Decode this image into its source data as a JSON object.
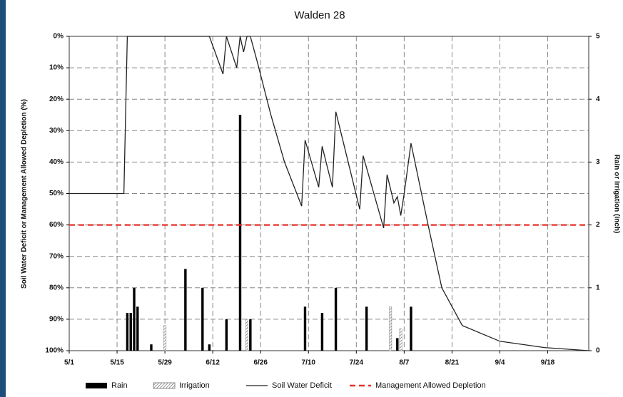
{
  "chart_data": {
    "type": "combo",
    "title": "Walden 28",
    "y_label": "Soil Water Deficit or Management Allowed Depletion (%)",
    "y2_label": "Rain or Irrigation (inch)",
    "xlim": [
      "5/1",
      "9/30"
    ],
    "xticks": [
      "5/1",
      "5/15",
      "5/29",
      "6/12",
      "6/26",
      "7/10",
      "7/24",
      "8/7",
      "8/21",
      "9/4",
      "9/18"
    ],
    "ylim": [
      0,
      100
    ],
    "y_inverted": true,
    "yticks": [
      {
        "value": 0,
        "label": "0%"
      },
      {
        "value": 10,
        "label": "10%"
      },
      {
        "value": 20,
        "label": "20%"
      },
      {
        "value": 30,
        "label": "30%"
      },
      {
        "value": 40,
        "label": "40%"
      },
      {
        "value": 50,
        "label": "50%"
      },
      {
        "value": 60,
        "label": "60%"
      },
      {
        "value": 70,
        "label": "70%"
      },
      {
        "value": 80,
        "label": "80%"
      },
      {
        "value": 90,
        "label": "90%"
      },
      {
        "value": 100,
        "label": "100%"
      }
    ],
    "y2lim": [
      0,
      5
    ],
    "y2ticks": [
      0,
      1,
      2,
      3,
      4,
      5
    ],
    "grid": true,
    "legend": "bottom",
    "series": [
      {
        "name": "Rain",
        "type": "bar",
        "axis": "y2",
        "color": "#000000",
        "x": [
          "5/18",
          "5/19",
          "5/20",
          "5/21",
          "5/25",
          "6/4",
          "6/9",
          "6/11",
          "6/16",
          "6/20",
          "6/22",
          "6/23",
          "7/9",
          "7/14",
          "7/18",
          "7/27",
          "8/3",
          "8/5",
          "8/6",
          "8/9"
        ],
        "values": [
          0.6,
          0.6,
          1.0,
          0.7,
          0.1,
          1.3,
          1.0,
          0.1,
          0.5,
          3.75,
          0.25,
          0.5,
          0.7,
          0.6,
          1.0,
          0.7,
          0.7,
          0.2,
          0.25,
          0.7
        ]
      },
      {
        "name": "Irrigation",
        "type": "bar",
        "axis": "y2",
        "color": "#888888",
        "style": "hatched",
        "x": [
          "5/29",
          "6/22",
          "8/3",
          "8/6"
        ],
        "values": [
          0.4,
          0.5,
          0.7,
          0.35
        ]
      },
      {
        "name": "Soil Water Deficit",
        "type": "line",
        "color": "#222222",
        "x": [
          "5/1",
          "5/17",
          "5/18",
          "6/11",
          "6/15",
          "6/16",
          "6/19",
          "6/20",
          "6/21",
          "6/22",
          "6/23",
          "6/25",
          "6/29",
          "7/3",
          "7/8",
          "7/9",
          "7/13",
          "7/14",
          "7/17",
          "7/18",
          "7/25",
          "7/26",
          "8/1",
          "8/2",
          "8/4",
          "8/5",
          "8/6",
          "8/7",
          "8/9",
          "8/14",
          "8/18",
          "8/24",
          "9/4",
          "9/17",
          "9/30"
        ],
        "values": [
          50,
          50,
          0,
          0,
          12,
          0,
          10,
          0,
          5,
          0,
          0,
          8,
          25,
          40,
          54,
          33,
          48,
          35,
          48,
          24,
          55,
          38,
          61,
          44,
          53,
          51,
          57,
          50,
          34,
          60,
          80,
          92,
          97,
          99,
          100
        ]
      },
      {
        "name": "Management Allowed Depletion",
        "type": "line",
        "color": "#e8322a",
        "style": "dashed",
        "x": [
          "5/1",
          "9/30"
        ],
        "values": [
          60,
          60
        ]
      }
    ]
  }
}
